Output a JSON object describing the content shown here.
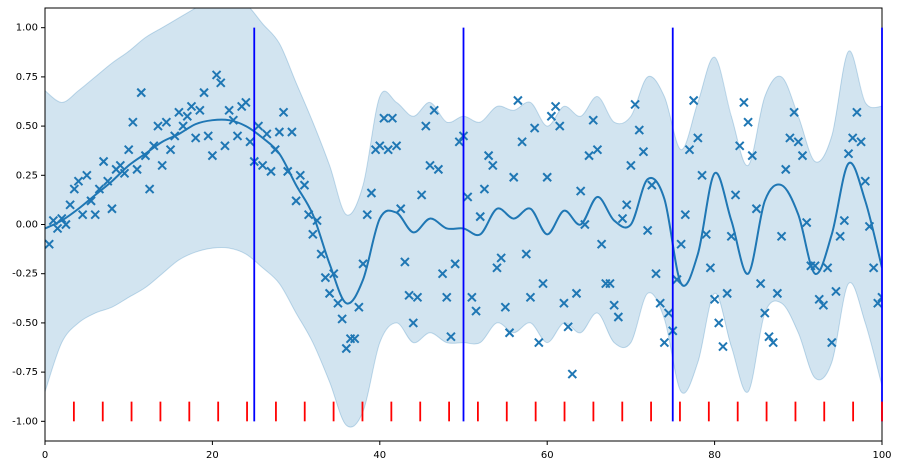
{
  "chart_data": {
    "type": "scatter",
    "xlim": [
      0,
      100
    ],
    "ylim": [
      -1.1,
      1.1
    ],
    "xticks": [
      0,
      20,
      40,
      60,
      80,
      100
    ],
    "yticks": [
      {
        "value": -1,
        "label": "-1.00"
      },
      {
        "value": -0.75,
        "label": "-0.75"
      },
      {
        "value": -0.5,
        "label": "-0.50"
      },
      {
        "value": -0.25,
        "label": "-0.25"
      },
      {
        "value": 0,
        "label": "0.00"
      },
      {
        "value": 0.25,
        "label": "0.25"
      },
      {
        "value": 0.5,
        "label": "0.50"
      },
      {
        "value": 0.75,
        "label": "0.75"
      },
      {
        "value": 1,
        "label": "1.00"
      }
    ],
    "color": "#1f77b4",
    "x": [
      0,
      2,
      4,
      6,
      8,
      10,
      12,
      14,
      16,
      18,
      20,
      22,
      24,
      26,
      28,
      30,
      32,
      34,
      36,
      38,
      40,
      42,
      44,
      46,
      48,
      50,
      52,
      54,
      56,
      58,
      60,
      62,
      64,
      66,
      68,
      70,
      72,
      74,
      76,
      78,
      80,
      82,
      84,
      86,
      88,
      90,
      92,
      94,
      96,
      98,
      100
    ],
    "mean": [
      -0.02,
      0.02,
      0.08,
      0.15,
      0.22,
      0.3,
      0.36,
      0.42,
      0.46,
      0.51,
      0.53,
      0.53,
      0.5,
      0.44,
      0.36,
      0.2,
      0.05,
      -0.2,
      -0.4,
      -0.28,
      0.03,
      0.06,
      -0.04,
      0.03,
      -0.02,
      -0.02,
      -0.05,
      0.08,
      0.03,
      0.08,
      -0.05,
      0.07,
      0.0,
      0.14,
      0.02,
      0.0,
      0.23,
      0.13,
      -0.3,
      -0.15,
      0.26,
      0.02,
      -0.25,
      0.12,
      0.2,
      0.05,
      -0.25,
      -0.05,
      0.31,
      0.12,
      -0.22
    ],
    "upper": [
      0.68,
      0.62,
      0.68,
      0.75,
      0.82,
      0.88,
      0.95,
      1.0,
      1.05,
      1.1,
      1.15,
      1.15,
      1.12,
      1.02,
      0.92,
      0.72,
      0.52,
      0.3,
      0.05,
      0.2,
      0.65,
      0.62,
      0.55,
      0.62,
      0.52,
      0.55,
      0.52,
      0.6,
      0.58,
      0.62,
      0.5,
      0.6,
      0.55,
      0.65,
      0.52,
      0.55,
      0.75,
      0.65,
      0.38,
      0.62,
      0.85,
      0.55,
      0.3,
      0.65,
      0.75,
      0.55,
      0.32,
      0.45,
      0.88,
      0.62,
      0.6
    ],
    "lower": [
      -0.85,
      -0.6,
      -0.5,
      -0.45,
      -0.42,
      -0.37,
      -0.32,
      -0.25,
      -0.18,
      -0.14,
      -0.12,
      -0.12,
      -0.15,
      -0.22,
      -0.3,
      -0.45,
      -0.6,
      -0.8,
      -1.02,
      -0.95,
      -0.6,
      -0.5,
      -0.6,
      -0.55,
      -0.6,
      -0.6,
      -0.6,
      -0.5,
      -0.55,
      -0.5,
      -0.6,
      -0.5,
      -0.55,
      -0.45,
      -0.6,
      -0.6,
      -0.35,
      -0.48,
      -0.85,
      -0.7,
      -0.35,
      -0.62,
      -0.85,
      -0.45,
      -0.4,
      -0.55,
      -0.78,
      -0.7,
      -0.3,
      -0.5,
      -0.82
    ],
    "scatter": {
      "x": [
        0.5,
        1,
        1.5,
        2,
        2.5,
        3,
        3.5,
        4,
        4.5,
        5,
        5.5,
        6,
        6.5,
        7,
        7.5,
        8,
        8.5,
        9,
        9.5,
        10,
        10.5,
        11,
        11.5,
        12,
        12.5,
        13,
        13.5,
        14,
        14.5,
        15,
        15.5,
        16,
        16.5,
        17,
        17.5,
        18,
        18.5,
        19,
        19.5,
        20,
        20.5,
        21,
        21.5,
        22,
        22.5,
        23,
        23.5,
        24,
        24.5,
        25,
        25.5,
        26,
        26.5,
        27,
        27.5,
        28,
        28.5,
        29,
        29.5,
        30,
        30.5,
        31,
        31.5,
        32,
        32.5,
        33,
        33.5,
        34,
        34.5,
        35,
        35.5,
        36,
        36.5,
        37,
        37.5,
        38,
        38.5,
        39,
        39.5,
        40,
        40.5,
        41,
        41.5,
        42,
        42.5,
        43,
        43.5,
        44,
        44.5,
        45,
        45.5,
        46,
        46.5,
        47,
        47.5,
        48,
        48.5,
        49,
        49.5,
        50,
        50.5,
        51,
        51.5,
        52,
        52.5,
        53,
        53.5,
        54,
        54.5,
        55,
        55.5,
        56,
        56.5,
        57,
        57.5,
        58,
        58.5,
        59,
        59.5,
        60,
        60.5,
        61,
        61.5,
        62,
        62.5,
        63,
        63.5,
        64,
        64.5,
        65,
        65.5,
        66,
        66.5,
        67,
        67.5,
        68,
        68.5,
        69,
        69.5,
        70,
        70.5,
        71,
        71.5,
        72,
        72.5,
        73,
        73.5,
        74,
        74.5,
        75,
        75.5,
        76,
        76.5,
        77,
        77.5,
        78,
        78.5,
        79,
        79.5,
        80,
        80.5,
        81,
        81.5,
        82,
        82.5,
        83,
        83.5,
        84,
        84.5,
        85,
        85.5,
        86,
        86.5,
        87,
        87.5,
        88,
        88.5,
        89,
        89.5,
        90,
        90.5,
        91,
        91.5,
        92,
        92.5,
        93,
        93.5,
        94,
        94.5,
        95,
        95.5,
        96,
        96.5,
        97,
        97.5,
        98,
        98.5,
        99,
        99.5,
        100
      ],
      "y": [
        -0.1,
        0.02,
        -0.02,
        0.03,
        0.0,
        0.1,
        0.18,
        0.22,
        0.05,
        0.25,
        0.12,
        0.05,
        0.18,
        0.32,
        0.22,
        0.08,
        0.28,
        0.3,
        0.26,
        0.38,
        0.52,
        0.28,
        0.67,
        0.35,
        0.18,
        0.4,
        0.5,
        0.3,
        0.52,
        0.38,
        0.45,
        0.57,
        0.5,
        0.55,
        0.6,
        0.44,
        0.58,
        0.67,
        0.45,
        0.35,
        0.76,
        0.72,
        0.4,
        0.58,
        0.53,
        0.45,
        0.6,
        0.62,
        0.42,
        0.32,
        0.5,
        0.3,
        0.46,
        0.27,
        0.38,
        0.47,
        0.57,
        0.27,
        0.47,
        0.12,
        0.25,
        0.2,
        0.05,
        -0.05,
        0.02,
        -0.15,
        -0.27,
        -0.35,
        -0.25,
        -0.4,
        -0.48,
        -0.63,
        -0.58,
        -0.58,
        -0.42,
        -0.2,
        0.05,
        0.16,
        0.38,
        0.4,
        0.54,
        0.38,
        0.54,
        0.4,
        0.08,
        -0.19,
        -0.36,
        -0.5,
        -0.37,
        0.15,
        0.5,
        0.3,
        0.58,
        0.28,
        -0.25,
        -0.37,
        -0.57,
        -0.2,
        0.42,
        0.45,
        0.14,
        -0.37,
        -0.44,
        0.04,
        0.18,
        0.35,
        0.3,
        -0.22,
        -0.17,
        -0.42,
        -0.55,
        0.24,
        0.63,
        0.42,
        -0.15,
        -0.37,
        0.49,
        -0.6,
        -0.3,
        0.24,
        0.55,
        0.6,
        0.5,
        -0.4,
        -0.52,
        -0.76,
        -0.35,
        0.17,
        0.0,
        0.35,
        0.53,
        0.38,
        -0.1,
        -0.3,
        -0.3,
        -0.41,
        -0.47,
        0.03,
        0.1,
        0.3,
        0.61,
        0.48,
        0.37,
        -0.03,
        0.2,
        -0.25,
        -0.4,
        -0.6,
        -0.45,
        -0.54,
        -0.28,
        -0.1,
        0.05,
        0.38,
        0.63,
        0.44,
        0.25,
        -0.05,
        -0.22,
        -0.38,
        -0.5,
        -0.62,
        -0.35,
        -0.06,
        0.15,
        0.4,
        0.62,
        0.52,
        0.35,
        0.08,
        -0.3,
        -0.45,
        -0.57,
        -0.6,
        -0.35,
        -0.06,
        0.28,
        0.44,
        0.57,
        0.42,
        0.35,
        0.01,
        -0.21,
        -0.21,
        -0.38,
        -0.41,
        -0.22,
        -0.6,
        -0.34,
        -0.06,
        0.02,
        0.36,
        0.44,
        0.57,
        0.42,
        0.22,
        -0.01,
        -0.22,
        -0.4,
        -0.37
      ]
    },
    "vlines": [
      {
        "x": [
          25,
          50,
          75,
          100
        ],
        "ymin": -1,
        "ymax": 1,
        "color": "blue"
      },
      {
        "x": [
          3.45,
          6.9,
          10.34,
          13.79,
          17.24,
          20.69,
          24.14,
          27.59,
          31.03,
          34.48,
          37.93,
          41.38,
          44.83,
          48.28,
          51.72,
          55.17,
          58.62,
          62.07,
          65.52,
          68.97,
          72.41,
          75.86,
          79.31,
          82.76,
          86.21,
          89.66,
          93.1,
          96.55,
          100
        ],
        "ymin": -1,
        "ymax": -0.9,
        "color": "red"
      }
    ]
  }
}
